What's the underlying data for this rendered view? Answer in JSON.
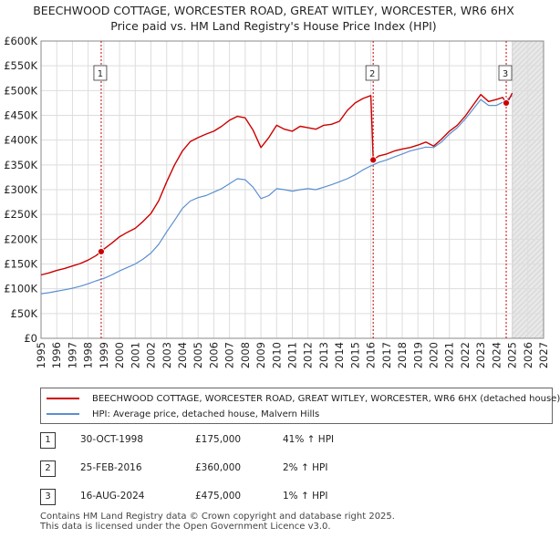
{
  "header": {
    "title_line1": "BEECHWOOD COTTAGE, WORCESTER ROAD, GREAT WITLEY, WORCESTER, WR6 6HX",
    "title_line2": "Price paid vs. HM Land Registry's House Price Index (HPI)"
  },
  "chart_data": {
    "type": "line",
    "title": "BEECHWOOD COTTAGE, WORCESTER ROAD, GREAT WITLEY, WORCESTER, WR6 6HX",
    "subtitle": "Price paid vs. HM Land Registry's House Price Index (HPI)",
    "xlabel": "",
    "ylabel": "",
    "xlim": [
      1995,
      2027
    ],
    "ylim": [
      0,
      600000
    ],
    "x_ticks": [
      1995,
      1996,
      1997,
      1998,
      1999,
      2000,
      2001,
      2002,
      2003,
      2004,
      2005,
      2006,
      2007,
      2008,
      2009,
      2010,
      2011,
      2012,
      2013,
      2014,
      2015,
      2016,
      2017,
      2018,
      2019,
      2020,
      2021,
      2022,
      2023,
      2024,
      2025,
      2026,
      2027
    ],
    "y_ticks": [
      0,
      50000,
      100000,
      150000,
      200000,
      250000,
      300000,
      350000,
      400000,
      450000,
      500000,
      550000,
      600000
    ],
    "y_tick_labels": [
      "£0",
      "£50K",
      "£100K",
      "£150K",
      "£200K",
      "£250K",
      "£300K",
      "£350K",
      "£400K",
      "£450K",
      "£500K",
      "£550K",
      "£600K"
    ],
    "grid": true,
    "projection_start": 2025.0,
    "series": [
      {
        "name": "BEECHWOOD COTTAGE, WORCESTER ROAD, GREAT WITLEY, WORCESTER, WR6 6HX (detached house)",
        "color": "#cc0000",
        "x": [
          1995.0,
          1995.5,
          1996.0,
          1996.5,
          1997.0,
          1997.5,
          1998.0,
          1998.5,
          1998.83,
          1999.0,
          1999.5,
          2000.0,
          2000.5,
          2001.0,
          2001.5,
          2002.0,
          2002.5,
          2003.0,
          2003.5,
          2004.0,
          2004.5,
          2005.0,
          2005.5,
          2006.0,
          2006.5,
          2007.0,
          2007.5,
          2008.0,
          2008.5,
          2009.0,
          2009.5,
          2010.0,
          2010.5,
          2011.0,
          2011.5,
          2012.0,
          2012.5,
          2013.0,
          2013.5,
          2014.0,
          2014.5,
          2015.0,
          2015.5,
          2016.0,
          2016.15,
          2016.5,
          2017.0,
          2017.5,
          2018.0,
          2018.5,
          2019.0,
          2019.5,
          2020.0,
          2020.5,
          2021.0,
          2021.5,
          2022.0,
          2022.5,
          2023.0,
          2023.5,
          2024.0,
          2024.4,
          2024.62,
          2024.8,
          2025.0
        ],
        "values": [
          128000,
          132000,
          137000,
          141000,
          146000,
          151000,
          158000,
          167000,
          175000,
          180000,
          192000,
          205000,
          214000,
          222000,
          236000,
          252000,
          278000,
          316000,
          350000,
          378000,
          397000,
          405000,
          412000,
          418000,
          428000,
          440000,
          448000,
          445000,
          420000,
          385000,
          405000,
          430000,
          422000,
          418000,
          428000,
          425000,
          422000,
          430000,
          432000,
          438000,
          460000,
          475000,
          484000,
          490000,
          360000,
          368000,
          372000,
          378000,
          382000,
          385000,
          390000,
          396000,
          388000,
          402000,
          418000,
          430000,
          448000,
          470000,
          492000,
          478000,
          482000,
          486000,
          475000,
          482000,
          495000
        ]
      },
      {
        "name": "HPI: Average price, detached house, Malvern Hills",
        "color": "#5b8fd0",
        "x": [
          1995.0,
          1995.5,
          1996.0,
          1996.5,
          1997.0,
          1997.5,
          1998.0,
          1998.5,
          1999.0,
          1999.5,
          2000.0,
          2000.5,
          2001.0,
          2001.5,
          2002.0,
          2002.5,
          2003.0,
          2003.5,
          2004.0,
          2004.5,
          2005.0,
          2005.5,
          2006.0,
          2006.5,
          2007.0,
          2007.5,
          2008.0,
          2008.5,
          2009.0,
          2009.5,
          2010.0,
          2010.5,
          2011.0,
          2011.5,
          2012.0,
          2012.5,
          2013.0,
          2013.5,
          2014.0,
          2014.5,
          2015.0,
          2015.5,
          2016.0,
          2016.5,
          2017.0,
          2017.5,
          2018.0,
          2018.5,
          2019.0,
          2019.5,
          2020.0,
          2020.5,
          2021.0,
          2021.5,
          2022.0,
          2022.5,
          2023.0,
          2023.5,
          2024.0,
          2024.5,
          2025.0
        ],
        "values": [
          90000,
          92000,
          95000,
          98000,
          101000,
          105000,
          110000,
          116000,
          121000,
          128000,
          136000,
          143000,
          150000,
          160000,
          172000,
          190000,
          215000,
          238000,
          262000,
          277000,
          284000,
          288000,
          295000,
          302000,
          312000,
          322000,
          320000,
          305000,
          282000,
          288000,
          302000,
          300000,
          297000,
          300000,
          302000,
          300000,
          305000,
          310000,
          316000,
          322000,
          330000,
          340000,
          348000,
          355000,
          360000,
          366000,
          372000,
          378000,
          382000,
          386000,
          385000,
          396000,
          412000,
          425000,
          442000,
          462000,
          482000,
          470000,
          470000,
          478000,
          490000
        ]
      }
    ],
    "annotations": [
      {
        "label": "1",
        "x": 1998.83,
        "value": 175000
      },
      {
        "label": "2",
        "x": 2016.15,
        "value": 360000
      },
      {
        "label": "3",
        "x": 2024.62,
        "value": 475000
      }
    ]
  },
  "legend": {
    "property_label": "BEECHWOOD COTTAGE, WORCESTER ROAD, GREAT WITLEY, WORCESTER, WR6 6HX (detached house)",
    "hpi_label": "HPI: Average price, detached house, Malvern Hills"
  },
  "sales": [
    {
      "num": "1",
      "date": "30-OCT-1998",
      "price": "£175,000",
      "hpi": "41% ↑ HPI"
    },
    {
      "num": "2",
      "date": "25-FEB-2016",
      "price": "£360,000",
      "hpi": "2% ↑ HPI"
    },
    {
      "num": "3",
      "date": "16-AUG-2024",
      "price": "£475,000",
      "hpi": "1% ↑ HPI"
    }
  ],
  "footer": {
    "line1": "Contains HM Land Registry data © Crown copyright and database right 2025.",
    "line2": "This data is licensed under the Open Government Licence v3.0."
  },
  "colors": {
    "property": "#cc0000",
    "hpi": "#5b8fd0",
    "grid": "#dddddd",
    "sale_line": "#cc0000",
    "projection": "#e8e8e8"
  }
}
